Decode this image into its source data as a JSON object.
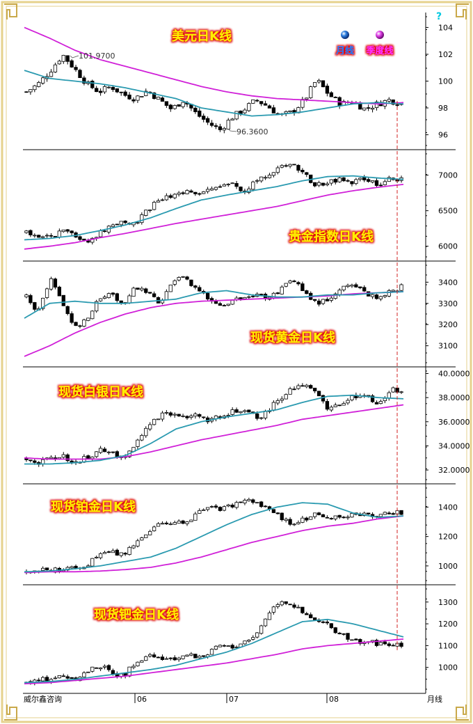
{
  "colors": {
    "frame_gold": "#d9c27a",
    "monthly_line": "#2a9ab0",
    "quarterly_line": "#d020d8",
    "title_text": "#ffee00",
    "title_glow": "#e01010",
    "candle": "#000000",
    "divider": "#000000",
    "dashed_marker": "#d02020",
    "legend_month": "#0080ff",
    "legend_quarter": "#ff30ff",
    "question_mark": "#00c8e0"
  },
  "icons": {
    "legend_month_dot": "blue-sphere-icon",
    "legend_quarter_dot": "magenta-sphere-icon",
    "help": "question-mark-icon",
    "corner_ornament": "greek-key-corner-icon"
  },
  "legend": {
    "month": "月线",
    "quarter": "季度线"
  },
  "help_mark": "?",
  "footer": {
    "source": "威尔鑫咨询",
    "period": "月线"
  },
  "x_axis": {
    "ticks": [
      "06",
      "07",
      "08"
    ]
  },
  "chart_data": [
    {
      "type": "candlestick",
      "title": "美元日K线",
      "y_ticks": [
        "104",
        "102",
        "100",
        "98",
        "96"
      ],
      "ylim": [
        95.2,
        104.8
      ],
      "annotations": [
        "101.9700",
        "96.3600"
      ],
      "price_path": [
        99.2,
        99.8,
        100.8,
        101.97,
        100.9,
        99.8,
        99.2,
        99.6,
        99.0,
        98.7,
        99.3,
        98.6,
        97.9,
        98.6,
        97.6,
        96.9,
        96.36,
        97.3,
        97.9,
        98.6,
        98.1,
        97.4,
        97.7,
        98.6,
        100.1,
        99.0,
        98.3,
        98.5,
        97.9,
        98.3,
        98.6,
        98.3
      ],
      "monthly_ma": [
        100.8,
        100.2,
        100.0,
        99.8,
        99.5,
        99.1,
        98.7,
        98.0,
        97.7,
        97.4,
        97.5,
        97.7,
        98.0,
        98.3,
        98.4,
        98.3
      ],
      "quarterly_ma": [
        104.0,
        103.2,
        102.3,
        101.6,
        101.1,
        100.6,
        100.1,
        99.6,
        99.2,
        98.9,
        98.7,
        98.6,
        98.5,
        98.4,
        98.3,
        98.4
      ]
    },
    {
      "type": "candlestick",
      "title": "贵金指数日K线",
      "y_ticks": [
        "7000",
        "6500",
        "6000"
      ],
      "ylim": [
        5850,
        7300
      ],
      "price_path": [
        6200,
        6100,
        6150,
        6200,
        6150,
        6080,
        6180,
        6300,
        6350,
        6300,
        6500,
        6650,
        6700,
        6780,
        6760,
        6800,
        6820,
        6900,
        6760,
        6950,
        7000,
        7100,
        7200,
        7000,
        6850,
        6900,
        6950,
        6900,
        6960,
        6850,
        6950,
        6950
      ],
      "monthly_ma": [
        6090,
        6110,
        6150,
        6220,
        6300,
        6400,
        6530,
        6650,
        6720,
        6780,
        6840,
        6920,
        6980,
        6990,
        6960,
        6940
      ],
      "quarterly_ma": [
        5960,
        6000,
        6050,
        6120,
        6180,
        6250,
        6320,
        6380,
        6440,
        6500,
        6560,
        6640,
        6720,
        6780,
        6830,
        6870
      ]
    },
    {
      "type": "candlestick",
      "title": "现货黄金日K线",
      "y_ticks": [
        "3400",
        "3300",
        "3200",
        "3100"
      ],
      "ylim": [
        3020,
        3480
      ],
      "price_path": [
        3330,
        3260,
        3420,
        3300,
        3180,
        3230,
        3320,
        3350,
        3290,
        3380,
        3350,
        3300,
        3400,
        3420,
        3370,
        3320,
        3280,
        3310,
        3330,
        3340,
        3330,
        3360,
        3420,
        3350,
        3300,
        3320,
        3370,
        3400,
        3350,
        3330,
        3350,
        3380
      ],
      "monthly_ma": [
        3230,
        3300,
        3310,
        3300,
        3300,
        3310,
        3320,
        3350,
        3360,
        3340,
        3330,
        3330,
        3340,
        3340,
        3350,
        3355
      ],
      "quarterly_ma": [
        3050,
        3100,
        3160,
        3210,
        3250,
        3280,
        3300,
        3310,
        3315,
        3320,
        3325,
        3330,
        3335,
        3345,
        3350,
        3355
      ]
    },
    {
      "type": "candlestick",
      "title": "现货白银日K线",
      "y_ticks": [
        "40.0000",
        "38.0000",
        "36.0000",
        "34.0000",
        "32.0000"
      ],
      "ylim": [
        31.2,
        40.2
      ],
      "price_path": [
        33.0,
        32.6,
        32.9,
        33.2,
        32.6,
        33.0,
        33.6,
        33.4,
        33.0,
        34.0,
        35.5,
        36.5,
        36.7,
        36.4,
        36.8,
        36.0,
        36.5,
        36.8,
        37.0,
        36.3,
        36.9,
        38.0,
        38.8,
        39.2,
        38.5,
        37.0,
        37.6,
        38.0,
        38.3,
        37.3,
        38.6,
        38.7
      ],
      "monthly_ma": [
        32.5,
        32.5,
        32.6,
        32.8,
        33.2,
        34.2,
        35.4,
        36.0,
        36.4,
        36.7,
        37.0,
        37.6,
        38.1,
        38.2,
        38.0,
        37.9
      ],
      "quarterly_ma": [
        33.0,
        32.9,
        32.9,
        32.9,
        33.1,
        33.5,
        34.0,
        34.5,
        34.9,
        35.3,
        35.7,
        36.2,
        36.5,
        36.8,
        37.1,
        37.4
      ]
    },
    {
      "type": "candlestick",
      "title": "现货铂金日K线",
      "y_ticks": [
        "1400",
        "1200",
        "1000"
      ],
      "ylim": [
        900,
        1530
      ],
      "price_path": [
        960,
        970,
        975,
        980,
        990,
        1000,
        1080,
        1090,
        1080,
        1150,
        1230,
        1280,
        1300,
        1290,
        1350,
        1400,
        1380,
        1410,
        1450,
        1420,
        1400,
        1330,
        1290,
        1320,
        1350,
        1340,
        1320,
        1350,
        1350,
        1340,
        1360,
        1360
      ],
      "monthly_ma": [
        960,
        965,
        980,
        1000,
        1030,
        1060,
        1120,
        1200,
        1280,
        1350,
        1400,
        1430,
        1420,
        1360,
        1330,
        1340
      ],
      "quarterly_ma": [
        955,
        960,
        960,
        965,
        975,
        990,
        1020,
        1060,
        1110,
        1160,
        1200,
        1240,
        1270,
        1290,
        1320,
        1340
      ]
    },
    {
      "type": "candlestick",
      "title": "现货钯金日K线",
      "y_ticks": [
        "1300",
        "1200",
        "1100",
        "1000"
      ],
      "ylim": [
        900,
        1360
      ],
      "price_path": [
        930,
        940,
        950,
        960,
        950,
        980,
        1010,
        980,
        960,
        1020,
        1050,
        1040,
        1030,
        1060,
        1050,
        1060,
        1100,
        1090,
        1120,
        1150,
        1250,
        1310,
        1290,
        1240,
        1210,
        1190,
        1150,
        1120,
        1120,
        1110,
        1100,
        1100
      ],
      "monthly_ma": [
        930,
        935,
        945,
        960,
        975,
        990,
        1010,
        1040,
        1070,
        1110,
        1160,
        1210,
        1220,
        1200,
        1170,
        1140
      ],
      "quarterly_ma": [
        925,
        930,
        940,
        950,
        960,
        975,
        990,
        1005,
        1020,
        1040,
        1060,
        1085,
        1100,
        1110,
        1120,
        1130
      ]
    }
  ]
}
